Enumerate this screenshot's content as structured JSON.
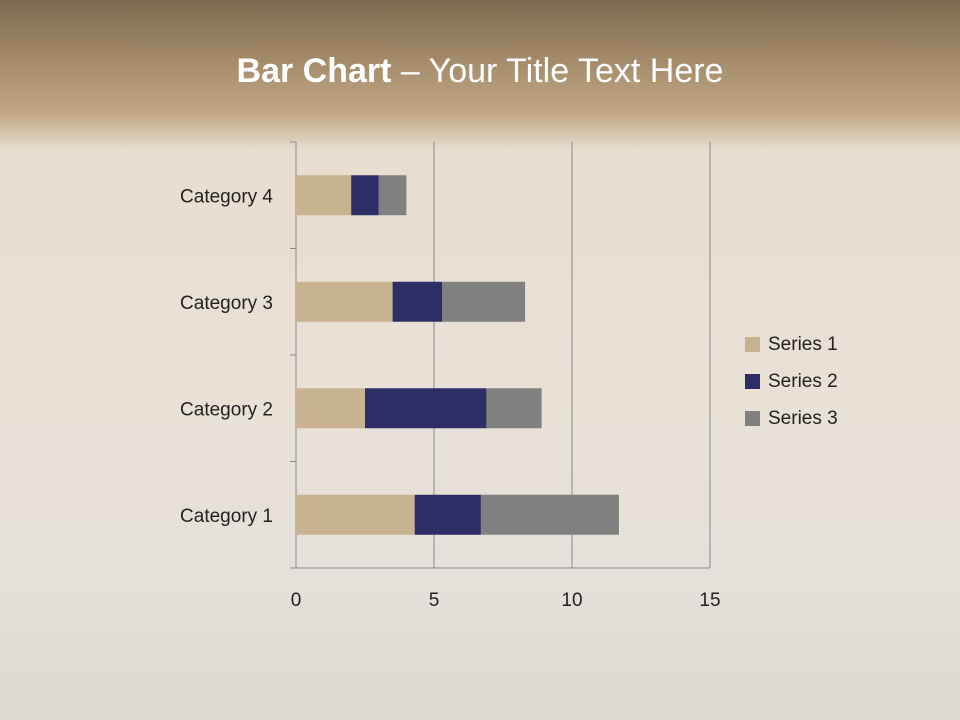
{
  "title_bold": "Bar Chart",
  "title_rest": " – Your Title Text Here",
  "chart_data": {
    "type": "bar",
    "orientation": "horizontal",
    "stacked": true,
    "categories": [
      "Category 1",
      "Category 2",
      "Category 3",
      "Category 4"
    ],
    "series": [
      {
        "name": "Series 1",
        "values": [
          4.3,
          2.5,
          3.5,
          2.0
        ],
        "color": "#c8b290"
      },
      {
        "name": "Series 2",
        "values": [
          2.4,
          4.4,
          1.8,
          1.0
        ],
        "color": "#2e2e66"
      },
      {
        "name": "Series 3",
        "values": [
          5.0,
          2.0,
          3.0,
          1.0
        ],
        "color": "#808080"
      }
    ],
    "xlim": [
      0,
      15
    ],
    "xticks": [
      "0",
      "5",
      "10",
      "15"
    ],
    "grid": true,
    "legend": "right"
  }
}
